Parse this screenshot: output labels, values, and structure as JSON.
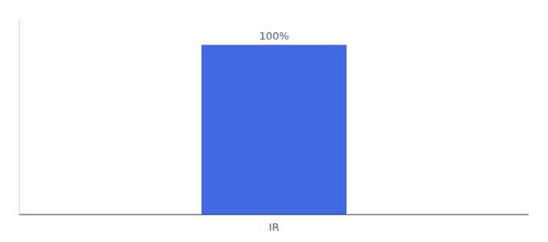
{
  "chart_data": {
    "type": "bar",
    "categories": [
      "IR"
    ],
    "values": [
      100
    ],
    "value_labels": [
      "100%"
    ],
    "data_labels": true,
    "color": "#4169E1",
    "ylim": [
      0,
      115
    ],
    "grid": false,
    "tick_labels": "x"
  }
}
